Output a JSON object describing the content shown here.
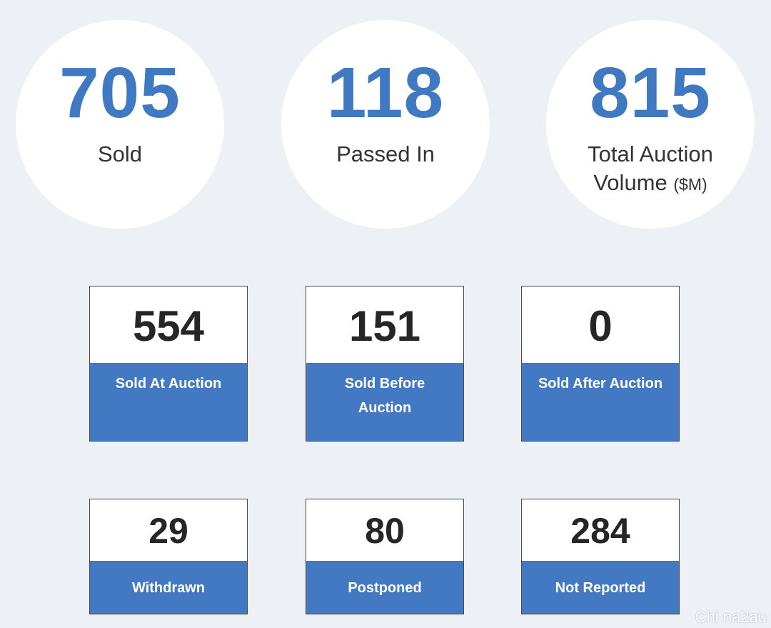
{
  "summary": [
    {
      "value": "705",
      "label": "Sold"
    },
    {
      "value": "118",
      "label": "Passed In"
    },
    {
      "value": "815",
      "label_line1": "Total Auction",
      "label_line2": "Volume",
      "unit": "($M)"
    }
  ],
  "cards_row1": [
    {
      "value": "554",
      "label": "Sold At Auction"
    },
    {
      "value": "151",
      "label_line1": "Sold Before",
      "label_line2": "Auction"
    },
    {
      "value": "0",
      "label": "Sold After Auction"
    }
  ],
  "cards_row2": [
    {
      "value": "29",
      "label": "Withdrawn"
    },
    {
      "value": "80",
      "label": "Postponed"
    },
    {
      "value": "284",
      "label": "Not Reported"
    }
  ],
  "watermark": "Chi na2au",
  "colors": {
    "background": "#edf1f5",
    "accent_blue": "#3f79c1",
    "card_blue": "#4279c2"
  }
}
